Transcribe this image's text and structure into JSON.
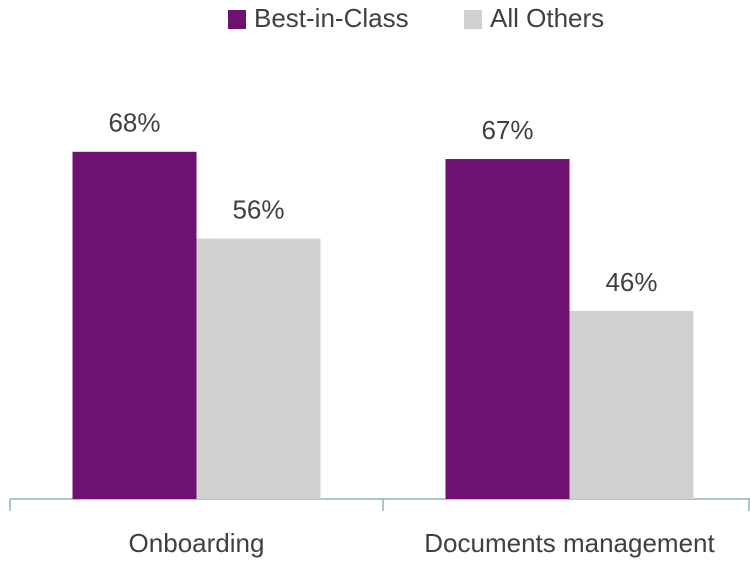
{
  "chart_data": {
    "type": "bar",
    "categories": [
      "Onboarding",
      "Documents management"
    ],
    "series": [
      {
        "name": "Best-in-Class",
        "color": "#6d1270",
        "values": [
          68,
          67
        ],
        "value_labels": [
          "68%",
          "67%"
        ]
      },
      {
        "name": "All Others",
        "color": "#d0d0d0",
        "values": [
          56,
          46
        ],
        "value_labels": [
          "56%",
          "46%"
        ]
      }
    ],
    "ylim": [
      20,
      80
    ]
  }
}
